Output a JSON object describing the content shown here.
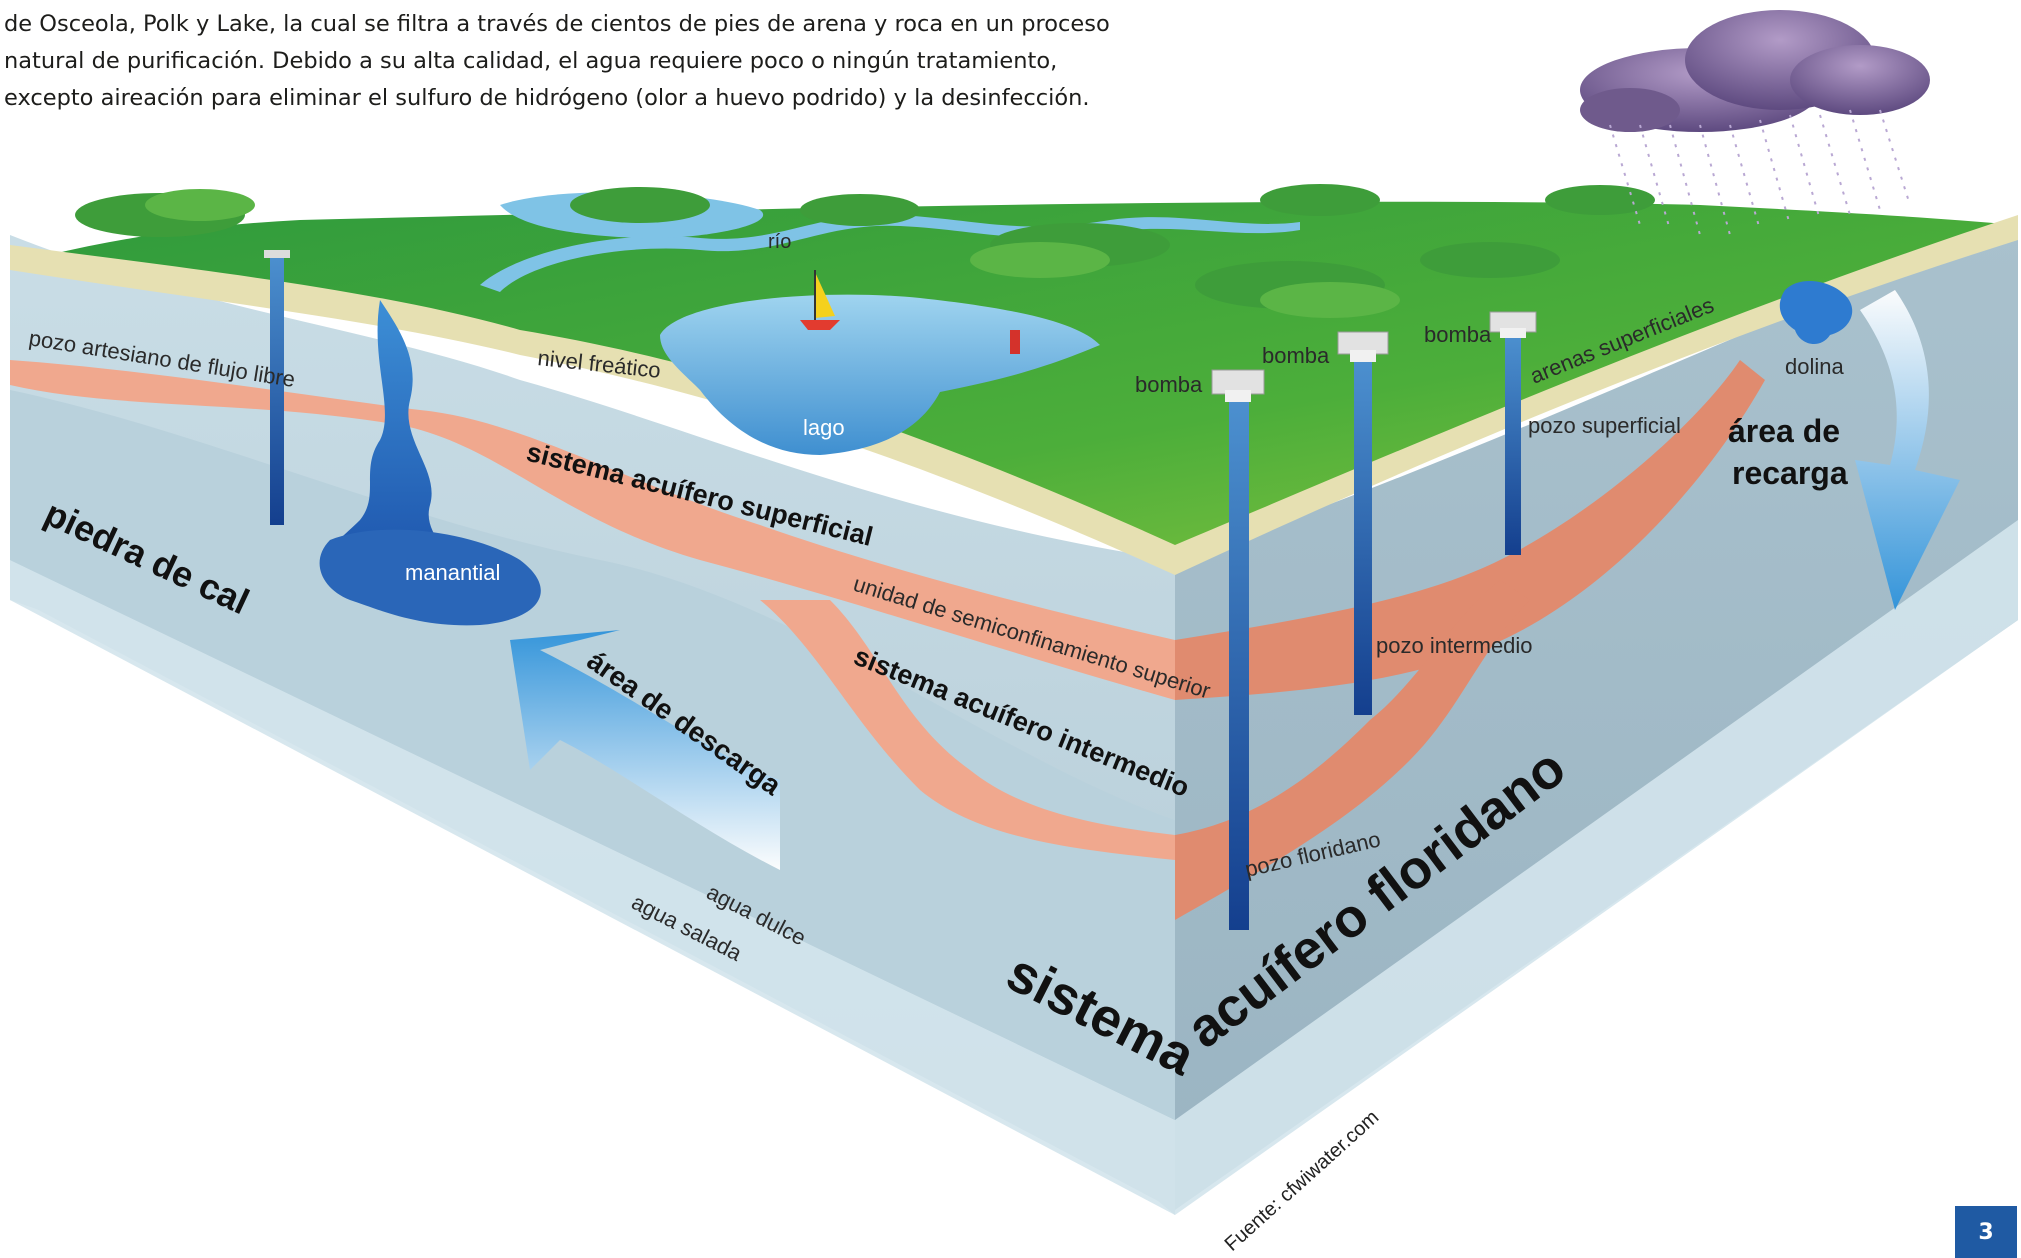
{
  "intro": {
    "lines": [
      "de Osceola, Polk y Lake, la cual se filtra a través de cientos de pies de arena y roca en un proceso",
      "natural de purificación. Debido a su alta calidad, el agua requiere poco o ningún tratamiento,",
      "excepto aireación para eliminar el sulfuro de hidrógeno (olor a huevo podrido) y la desinfección."
    ]
  },
  "labels": {
    "rio": "río",
    "pozo_artesiano": "pozo artesiano de flujo libre",
    "nivel_freatico": "nivel freático",
    "lago": "lago",
    "bomba_1": "bomba",
    "bomba_2": "bomba",
    "bomba_3": "bomba",
    "arenas_superficiales": "arenas superficiales",
    "dolina": "dolina",
    "pozo_superficial": "pozo superficial",
    "area_recarga_1": "área de",
    "area_recarga_2": "recarga",
    "sistema_superficial": "sistema acuífero superficial",
    "piedra_cal": "piedra de cal",
    "manantial": "manantial",
    "unidad_semiconfinamiento": "unidad de semiconfinamiento superior",
    "sistema_intermedio": "sistema acuífero intermedio",
    "pozo_intermedio": "pozo intermedio",
    "area_descarga": "área de descarga",
    "pozo_floridano": "pozo floridano",
    "agua_dulce": "agua dulce",
    "agua_salada": "agua salada",
    "sistema": "sistema",
    "acuifero_floridano": "acuífero floridano",
    "fuente": "Fuente: cfwiwater.com"
  },
  "page_number": "3"
}
